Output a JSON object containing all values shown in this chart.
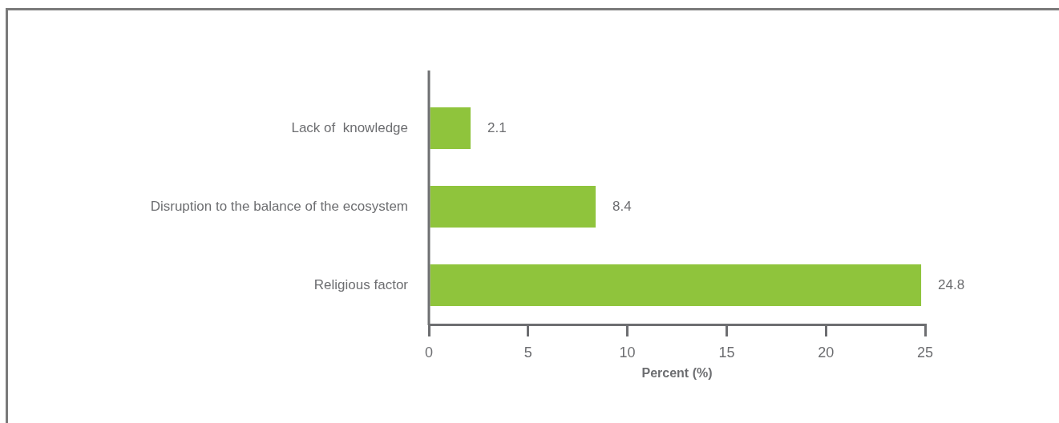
{
  "chart_data": {
    "type": "bar",
    "orientation": "horizontal",
    "categories": [
      "Lack of  knowledge",
      "Disruption to the balance of the ecosystem",
      "Religious factor"
    ],
    "values": [
      2.1,
      8.4,
      24.8
    ],
    "color": "#8fc43c",
    "xlabel": "Percent (%)",
    "xlim": [
      0,
      25
    ],
    "xticks": [
      0,
      5,
      10,
      15,
      20,
      25
    ],
    "data_labels": true
  }
}
